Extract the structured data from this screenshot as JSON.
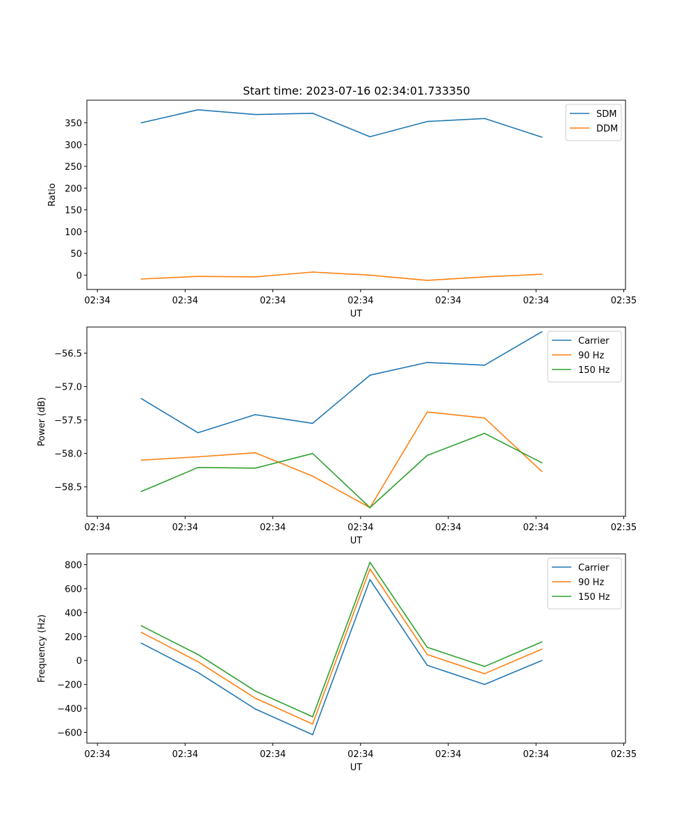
{
  "figure": {
    "title": "Start time: 2023-07-16 02:34:01.733350"
  },
  "colors": {
    "series1": "#1f77b4",
    "series2": "#ff7f0e",
    "series3": "#2ca02c"
  },
  "chart_data": [
    {
      "type": "line",
      "title": "Start time: 2023-07-16 02:34:01.733350",
      "xlabel": "UT",
      "ylabel": "Ratio",
      "xlim": [
        -0.18,
        9.03
      ],
      "ylim": [
        -33,
        402
      ],
      "x_ticks": [
        0,
        1.5,
        3,
        4.5,
        6,
        7.5,
        9
      ],
      "x_tick_labels": [
        "02:34",
        "02:34",
        "02:34",
        "02:34",
        "02:34",
        "02:34",
        "02:35"
      ],
      "y_ticks": [
        0,
        50,
        100,
        150,
        200,
        250,
        300,
        350
      ],
      "y_tick_labels": [
        "0",
        "50",
        "100",
        "150",
        "200",
        "250",
        "300",
        "350"
      ],
      "legend": "top-right",
      "x": [
        0.75,
        1.72,
        2.7,
        3.68,
        4.66,
        5.64,
        6.62,
        7.6
      ],
      "series": [
        {
          "name": "SDM",
          "color": "#1f77b4",
          "values": [
            350,
            380,
            369,
            372,
            318,
            353,
            360,
            317
          ]
        },
        {
          "name": "DDM",
          "color": "#ff7f0e",
          "values": [
            -9,
            -3,
            -4,
            7,
            0,
            -12,
            -4,
            2
          ]
        }
      ]
    },
    {
      "type": "line",
      "xlabel": "UT",
      "ylabel": "Power (dB)",
      "xlim": [
        -0.18,
        9.03
      ],
      "ylim": [
        -58.94,
        -56.11
      ],
      "x_ticks": [
        0,
        1.5,
        3,
        4.5,
        6,
        7.5,
        9
      ],
      "x_tick_labels": [
        "02:34",
        "02:34",
        "02:34",
        "02:34",
        "02:34",
        "02:34",
        "02:35"
      ],
      "y_ticks": [
        -58.5,
        -58.0,
        -57.5,
        -57.0,
        -56.5
      ],
      "y_tick_labels": [
        "−58.5",
        "−58.0",
        "−57.5",
        "−57.0",
        "−56.5"
      ],
      "legend": "top-right",
      "x": [
        0.75,
        1.72,
        2.7,
        3.68,
        4.66,
        5.64,
        6.62,
        7.6
      ],
      "series": [
        {
          "name": "Carrier",
          "color": "#1f77b4",
          "values": [
            -57.18,
            -57.69,
            -57.42,
            -57.55,
            -56.83,
            -56.64,
            -56.68,
            -56.18
          ]
        },
        {
          "name": "90 Hz",
          "color": "#ff7f0e",
          "values": [
            -58.1,
            -58.05,
            -57.99,
            -58.34,
            -58.81,
            -57.38,
            -57.47,
            -58.27
          ]
        },
        {
          "name": "150 Hz",
          "color": "#2ca02c",
          "values": [
            -58.57,
            -58.21,
            -58.22,
            -58.0,
            -58.81,
            -58.03,
            -57.7,
            -58.14
          ]
        }
      ]
    },
    {
      "type": "line",
      "xlabel": "UT",
      "ylabel": "Frequency (Hz)",
      "xlim": [
        -0.18,
        9.03
      ],
      "ylim": [
        -690,
        890
      ],
      "x_ticks": [
        0,
        1.5,
        3,
        4.5,
        6,
        7.5,
        9
      ],
      "x_tick_labels": [
        "02:34",
        "02:34",
        "02:34",
        "02:34",
        "02:34",
        "02:34",
        "02:35"
      ],
      "y_ticks": [
        -600,
        -400,
        -200,
        0,
        200,
        400,
        600,
        800
      ],
      "y_tick_labels": [
        "−600",
        "−400",
        "−200",
        "0",
        "200",
        "400",
        "600",
        "800"
      ],
      "legend": "top-right",
      "x": [
        0.75,
        1.72,
        2.7,
        3.68,
        4.66,
        5.64,
        6.62,
        7.6
      ],
      "series": [
        {
          "name": "Carrier",
          "color": "#1f77b4",
          "values": [
            145,
            -100,
            -405,
            -620,
            675,
            -40,
            -200,
            0
          ]
        },
        {
          "name": "90 Hz",
          "color": "#ff7f0e",
          "values": [
            235,
            -10,
            -315,
            -530,
            765,
            50,
            -110,
            95
          ]
        },
        {
          "name": "150 Hz",
          "color": "#2ca02c",
          "values": [
            290,
            50,
            -255,
            -470,
            820,
            110,
            -50,
            155
          ]
        }
      ]
    }
  ]
}
